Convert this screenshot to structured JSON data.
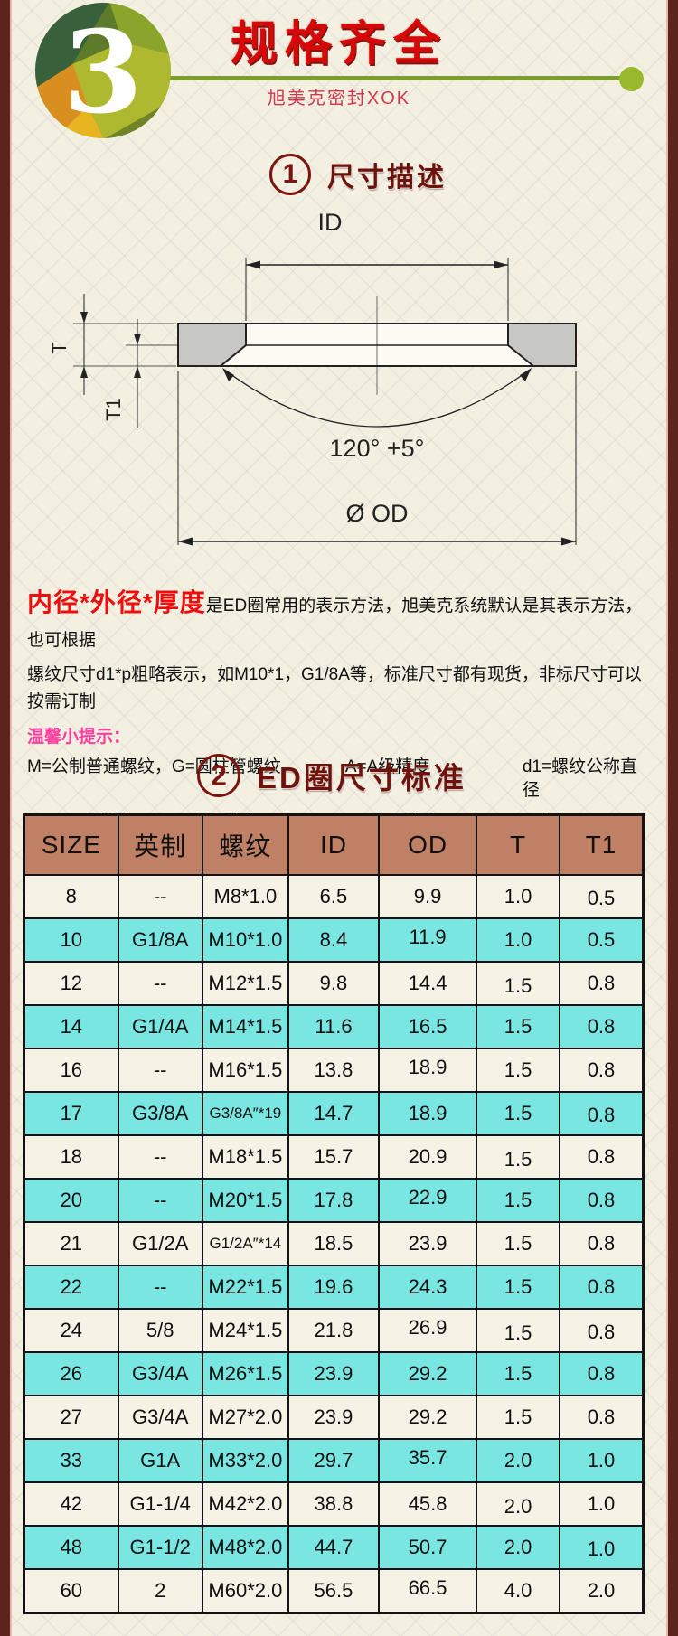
{
  "header": {
    "badge_number": "3",
    "title": "规格齐全",
    "subtitle": "旭美克密封XOK"
  },
  "section1": {
    "number": "1",
    "title": "尺寸描述"
  },
  "diagram_labels": {
    "id": "ID",
    "od": "Ø OD",
    "t": "T",
    "t1": "T1",
    "angle": "120° +5°"
  },
  "description": {
    "highlight": "内径*外径*厚度",
    "line1": "是ED圈常用的表示方法，旭美克系统默认是其表示方法，也可根据",
    "line2": "螺纹尺寸d1*p粗略表示，如M10*1，G1/8A等，标准尺寸都有现货，非标尺寸可以按需订制",
    "tip_label": "温馨小提示：",
    "legend_rows": [
      [
        "M=公制普通螺纹，G=圆柱管螺纹，",
        "A=A级精度",
        "d1=螺纹公称直径"
      ],
      [
        "OD=ED圈外径，  ID=ED圈内径，",
        "T=ED圈高度",
        "p=螺距"
      ]
    ]
  },
  "section2": {
    "number": "2",
    "title": "ED圈尺寸标准"
  },
  "table": {
    "headers": [
      "SIZE",
      "英制",
      "螺纹",
      "ID",
      "OD",
      "T",
      "T1"
    ],
    "rows": [
      [
        "8",
        "--",
        "M8*1.0",
        "6.5",
        "9.9",
        "1.0",
        "0.5"
      ],
      [
        "10",
        "G1/8A",
        "M10*1.0",
        "8.4",
        "11.9",
        "1.0",
        "0.5"
      ],
      [
        "12",
        "--",
        "M12*1.5",
        "9.8",
        "14.4",
        "1.5",
        "0.8"
      ],
      [
        "14",
        "G1/4A",
        "M14*1.5",
        "11.6",
        "16.5",
        "1.5",
        "0.8"
      ],
      [
        "16",
        "--",
        "M16*1.5",
        "13.8",
        "18.9",
        "1.5",
        "0.8"
      ],
      [
        "17",
        "G3/8A",
        "G3/8A″*19",
        "14.7",
        "18.9",
        "1.5",
        "0.8"
      ],
      [
        "18",
        "--",
        "M18*1.5",
        "15.7",
        "20.9",
        "1.5",
        "0.8"
      ],
      [
        "20",
        "--",
        "M20*1.5",
        "17.8",
        "22.9",
        "1.5",
        "0.8"
      ],
      [
        "21",
        "G1/2A",
        "G1/2A″*14",
        "18.5",
        "23.9",
        "1.5",
        "0.8"
      ],
      [
        "22",
        "--",
        "M22*1.5",
        "19.6",
        "24.3",
        "1.5",
        "0.8"
      ],
      [
        "24",
        "5/8",
        "M24*1.5",
        "21.8",
        "26.9",
        "1.5",
        "0.8"
      ],
      [
        "26",
        "G3/4A",
        "M26*1.5",
        "23.9",
        "29.2",
        "1.5",
        "0.8"
      ],
      [
        "27",
        "G3/4A",
        "M27*2.0",
        "23.9",
        "29.2",
        "1.5",
        "0.8"
      ],
      [
        "33",
        "G1A",
        "M33*2.0",
        "29.7",
        "35.7",
        "2.0",
        "1.0"
      ],
      [
        "42",
        "G1-1/4",
        "M42*2.0",
        "38.8",
        "45.8",
        "2.0",
        "1.0"
      ],
      [
        "48",
        "G1-1/2",
        "M48*2.0",
        "44.7",
        "50.7",
        "2.0",
        "1.0"
      ],
      [
        "60",
        "2",
        "M60*2.0",
        "56.5",
        "66.5",
        "4.0",
        "2.0"
      ]
    ]
  },
  "colors": {
    "page_background": "#f3f0e2",
    "side_border": "#5e231c",
    "title_red": "#d60808",
    "green_line": "#7d9c31",
    "green_dot": "#99b92c",
    "section_maroon": "#7c150f",
    "tip_pink": "#ff3fa0",
    "table_header_bg": "#c08065",
    "row_cyan": "#79e6e2",
    "row_cream": "#f6f3e6"
  }
}
